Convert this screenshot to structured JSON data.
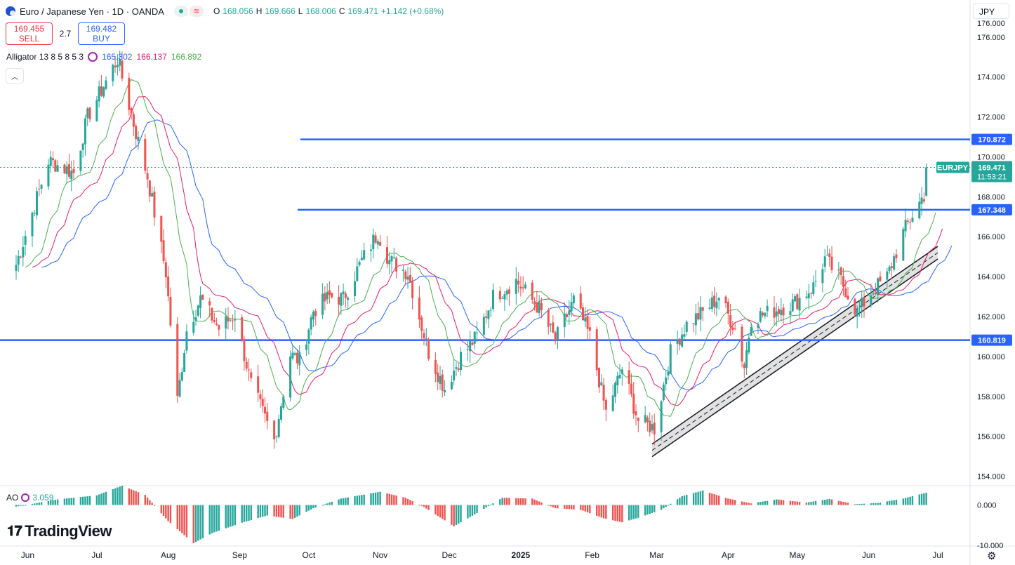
{
  "header": {
    "title": "Euro / Japanese Yen · 1D · OANDA",
    "open_label": "O",
    "open": "168.056",
    "high_label": "H",
    "high": "169.666",
    "low_label": "L",
    "low": "168.006",
    "close_label": "C",
    "close": "169.471",
    "change": "+1.142 (+0.68%)"
  },
  "trade": {
    "sell_price": "169.455",
    "sell_label": "SELL",
    "spread": "2.7",
    "buy_price": "169.482",
    "buy_label": "BUY"
  },
  "indicator": {
    "name": "Alligator 13 8 5 8 5 3",
    "jaw": "165.302",
    "teeth": "166.137",
    "lips": "166.892"
  },
  "currency": "JPY",
  "ao": {
    "name": "AO",
    "value": "3.059"
  },
  "logo": "TradingView",
  "colors": {
    "up": "#26a69a",
    "down": "#ef5350",
    "hline": "#2962ff",
    "jaw": "#2962ff",
    "teeth": "#e91e63",
    "lips": "#4caf50"
  },
  "chart_data": {
    "type": "candlestick",
    "title": "Euro / Japanese Yen · 1D · OANDA",
    "symbol": "EURJPY",
    "last_price": "169.471",
    "countdown": "11:53:21",
    "ylim": [
      153.6,
      176.8
    ],
    "y_ticks": [
      "154.000",
      "156.000",
      "158.000",
      "160.000",
      "162.000",
      "164.000",
      "166.000",
      "168.000",
      "170.000",
      "172.000",
      "174.000",
      "176.000",
      "176.000"
    ],
    "x_labels": [
      "Jun",
      "Jul",
      "Aug",
      "Sep",
      "Oct",
      "Nov",
      "Dec",
      "2025",
      "Feb",
      "Mar",
      "Apr",
      "May",
      "Jun",
      "Jul"
    ],
    "horizontal_levels": [
      "170.872",
      "167.348",
      "160.819"
    ],
    "levels_numeric": [
      170.872,
      167.348,
      160.819
    ],
    "channel": {
      "start": [
        "2025-02-27",
        155.3
      ],
      "end": [
        "2025-07-01",
        165.2
      ]
    },
    "close_path": [
      [
        "2024-05-27",
        164.6
      ],
      [
        "2024-06-10",
        169.8
      ],
      [
        "2024-06-21",
        169.2
      ],
      [
        "2024-06-27",
        172.0
      ],
      [
        "2024-07-10",
        174.9
      ],
      [
        "2024-07-18",
        171.2
      ],
      [
        "2024-07-23",
        169.0
      ],
      [
        "2024-07-31",
        164.2
      ],
      [
        "2024-08-05",
        157.8
      ],
      [
        "2024-08-09",
        161.3
      ],
      [
        "2024-08-15",
        162.9
      ],
      [
        "2024-08-23",
        161.4
      ],
      [
        "2024-08-30",
        162.1
      ],
      [
        "2024-09-06",
        158.6
      ],
      [
        "2024-09-16",
        155.8
      ],
      [
        "2024-09-23",
        160.1
      ],
      [
        "2024-09-27",
        159.8
      ],
      [
        "2024-10-03",
        162.3
      ],
      [
        "2024-10-10",
        163.0
      ],
      [
        "2024-10-16",
        162.9
      ],
      [
        "2024-10-24",
        164.8
      ],
      [
        "2024-10-31",
        166.2
      ],
      [
        "2024-11-05",
        164.8
      ],
      [
        "2024-11-13",
        164.2
      ],
      [
        "2024-11-22",
        160.2
      ],
      [
        "2024-11-29",
        158.4
      ],
      [
        "2024-12-06",
        160.0
      ],
      [
        "2024-12-13",
        161.0
      ],
      [
        "2024-12-20",
        163.0
      ],
      [
        "2024-12-30",
        163.8
      ],
      [
        "2025-01-09",
        162.4
      ],
      [
        "2025-01-16",
        160.8
      ],
      [
        "2025-01-24",
        162.8
      ],
      [
        "2025-01-31",
        161.0
      ],
      [
        "2025-02-07",
        157.2
      ],
      [
        "2025-02-14",
        159.4
      ],
      [
        "2025-02-21",
        156.8
      ],
      [
        "2025-02-28",
        156.4
      ],
      [
        "2025-03-07",
        160.2
      ],
      [
        "2025-03-14",
        161.6
      ],
      [
        "2025-03-21",
        162.2
      ],
      [
        "2025-03-28",
        163.0
      ],
      [
        "2025-04-04",
        161.4
      ],
      [
        "2025-04-08",
        159.5
      ],
      [
        "2025-04-11",
        161.9
      ],
      [
        "2025-04-21",
        162.3
      ],
      [
        "2025-04-30",
        162.7
      ],
      [
        "2025-05-08",
        163.5
      ],
      [
        "2025-05-13",
        164.9
      ],
      [
        "2025-05-20",
        163.8
      ],
      [
        "2025-05-27",
        162.2
      ],
      [
        "2025-06-02",
        163.2
      ],
      [
        "2025-06-09",
        164.0
      ],
      [
        "2025-06-16",
        166.2
      ],
      [
        "2025-06-20",
        167.1
      ],
      [
        "2025-06-25",
        168.1
      ],
      [
        "2025-06-26",
        169.471
      ]
    ],
    "ao_path": [
      [
        "2024-05-27",
        -0.4
      ],
      [
        "2024-06-14",
        1.4
      ],
      [
        "2024-07-01",
        2.4
      ],
      [
        "2024-07-12",
        4.8
      ],
      [
        "2024-07-22",
        2.5
      ],
      [
        "2024-08-01",
        -4.0
      ],
      [
        "2024-08-12",
        -9.5
      ],
      [
        "2024-08-20",
        -7.0
      ],
      [
        "2024-09-02",
        -4.4
      ],
      [
        "2024-09-13",
        -2.6
      ],
      [
        "2024-09-24",
        -3.5
      ],
      [
        "2024-10-03",
        -0.8
      ],
      [
        "2024-10-15",
        1.6
      ],
      [
        "2024-11-01",
        3.3
      ],
      [
        "2024-11-12",
        1.8
      ],
      [
        "2024-11-20",
        -0.5
      ],
      [
        "2024-12-03",
        -5.3
      ],
      [
        "2024-12-13",
        -2.0
      ],
      [
        "2024-12-24",
        1.8
      ],
      [
        "2025-01-06",
        1.6
      ],
      [
        "2025-01-16",
        -0.8
      ],
      [
        "2025-01-27",
        -1.2
      ],
      [
        "2025-02-06",
        -3.3
      ],
      [
        "2025-02-14",
        -4.3
      ],
      [
        "2025-02-21",
        -3.2
      ],
      [
        "2025-03-03",
        -1.2
      ],
      [
        "2025-03-12",
        2.2
      ],
      [
        "2025-03-21",
        3.6
      ],
      [
        "2025-04-01",
        1.6
      ],
      [
        "2025-04-11",
        0.4
      ],
      [
        "2025-04-22",
        1.4
      ],
      [
        "2025-05-05",
        0.6
      ],
      [
        "2025-05-15",
        1.5
      ],
      [
        "2025-05-26",
        0.2
      ],
      [
        "2025-06-05",
        0.5
      ],
      [
        "2025-06-16",
        1.6
      ],
      [
        "2025-06-26",
        3.059
      ]
    ],
    "ao_ylim": [
      -10.2,
      4.8
    ],
    "ao_ticks": [
      "0.000",
      "-10.000"
    ],
    "x_range": [
      "2024-05-20",
      "2025-07-15"
    ]
  }
}
